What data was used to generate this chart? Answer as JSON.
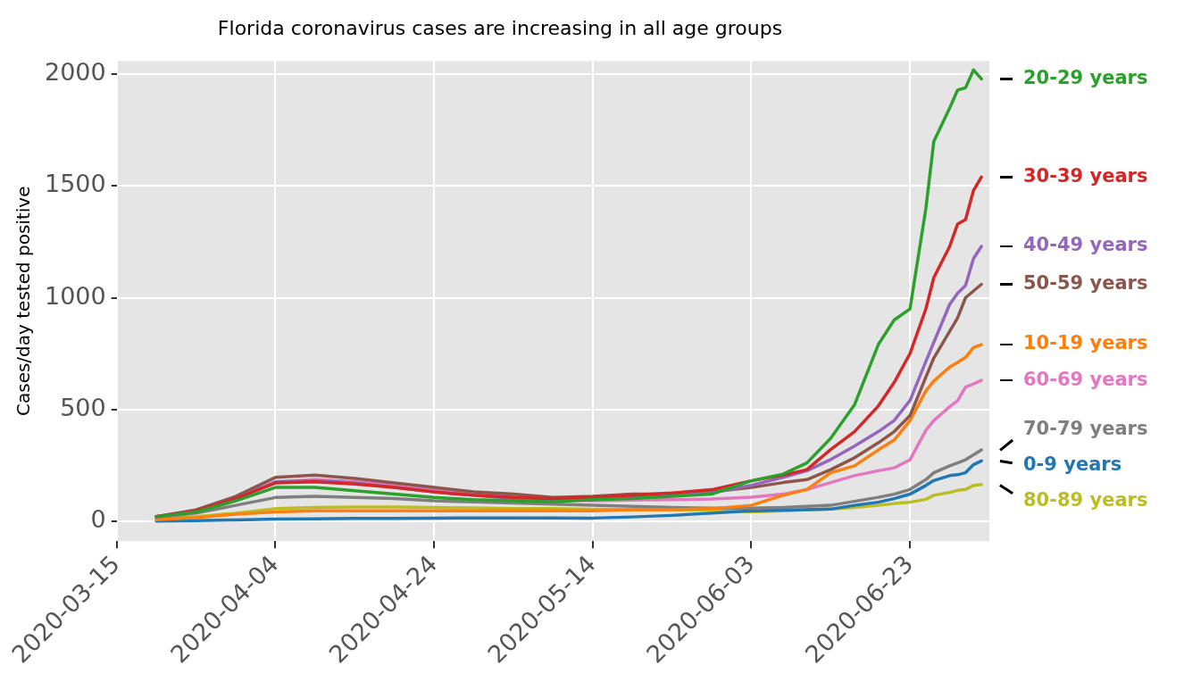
{
  "chart_data": {
    "type": "line",
    "title": "Florida coronavirus cases are increasing in all age groups",
    "ylabel": "Cases/day tested positive",
    "x": [
      "2020-03-20",
      "2020-03-25",
      "2020-03-30",
      "2020-04-04",
      "2020-04-09",
      "2020-04-14",
      "2020-04-19",
      "2020-04-24",
      "2020-04-29",
      "2020-05-04",
      "2020-05-09",
      "2020-05-14",
      "2020-05-19",
      "2020-05-24",
      "2020-05-29",
      "2020-06-03",
      "2020-06-07",
      "2020-06-10",
      "2020-06-13",
      "2020-06-16",
      "2020-06-19",
      "2020-06-21",
      "2020-06-23",
      "2020-06-25",
      "2020-06-26",
      "2020-06-28",
      "2020-06-29",
      "2020-06-30",
      "2020-07-01",
      "2020-07-02"
    ],
    "series": [
      {
        "name": "20-29 years",
        "color": "#2ca02c",
        "values": [
          20,
          40,
          90,
          150,
          150,
          135,
          120,
          105,
          95,
          90,
          85,
          95,
          100,
          110,
          120,
          180,
          210,
          260,
          370,
          520,
          790,
          900,
          950,
          1400,
          1700,
          1850,
          1930,
          1940,
          2020,
          1980
        ]
      },
      {
        "name": "30-39 years",
        "color": "#d62728",
        "values": [
          20,
          45,
          100,
          170,
          175,
          165,
          150,
          130,
          115,
          105,
          100,
          105,
          115,
          125,
          140,
          180,
          205,
          230,
          320,
          400,
          515,
          620,
          750,
          950,
          1090,
          1230,
          1330,
          1350,
          1480,
          1540
        ]
      },
      {
        "name": "40-49 years",
        "color": "#9467bd",
        "values": [
          20,
          45,
          100,
          175,
          180,
          170,
          150,
          130,
          115,
          100,
          95,
          95,
          105,
          115,
          125,
          160,
          195,
          225,
          275,
          335,
          400,
          450,
          540,
          715,
          800,
          970,
          1020,
          1055,
          1175,
          1230
        ]
      },
      {
        "name": "50-59 years",
        "color": "#8c564b",
        "values": [
          20,
          50,
          110,
          195,
          205,
          190,
          170,
          150,
          130,
          120,
          105,
          110,
          120,
          120,
          130,
          150,
          172,
          185,
          230,
          283,
          350,
          400,
          472,
          645,
          730,
          850,
          910,
          1000,
          1030,
          1060
        ]
      },
      {
        "name": "10-19 years",
        "color": "#ff7f0e",
        "values": [
          5,
          15,
          30,
          40,
          45,
          45,
          45,
          45,
          45,
          45,
          45,
          45,
          50,
          50,
          55,
          70,
          115,
          141,
          216,
          247,
          318,
          362,
          450,
          583,
          627,
          689,
          710,
          733,
          777,
          790
        ]
      },
      {
        "name": "60-69 years",
        "color": "#e377c2",
        "values": [
          null,
          null,
          100,
          175,
          185,
          175,
          160,
          140,
          125,
          110,
          95,
          90,
          93,
          95,
          98,
          106,
          120,
          141,
          172,
          203,
          225,
          238,
          274,
          406,
          450,
          512,
          539,
          600,
          614,
          630
        ]
      },
      {
        "name": "70-79 years",
        "color": "#7f7f7f",
        "values": [
          15,
          35,
          70,
          105,
          110,
          105,
          100,
          90,
          85,
          80,
          75,
          70,
          65,
          60,
          57,
          57,
          60,
          65,
          70,
          88,
          106,
          120,
          141,
          185,
          216,
          247,
          260,
          274,
          296,
          318
        ]
      },
      {
        "name": "0-9 years",
        "color": "#1f77b4",
        "values": [
          0,
          2,
          5,
          9,
          10,
          12,
          12,
          13,
          14,
          14,
          14,
          13,
          18,
          25,
          35,
          45,
          48,
          50,
          53,
          70,
          84,
          100,
          120,
          159,
          181,
          203,
          207,
          216,
          252,
          269
        ]
      },
      {
        "name": "80-89 years",
        "color": "#bcbd22",
        "values": [
          10,
          20,
          35,
          55,
          60,
          62,
          62,
          60,
          58,
          55,
          55,
          52,
          50,
          50,
          48,
          40,
          45,
          50,
          53,
          60,
          70,
          78,
          84,
          97,
          115,
          128,
          137,
          141,
          159,
          163
        ]
      }
    ],
    "xlim": [
      "2020-03-15",
      "2020-07-03"
    ],
    "xticks": [
      "2020-03-15",
      "2020-04-04",
      "2020-04-24",
      "2020-05-14",
      "2020-06-03",
      "2020-06-23"
    ],
    "ylim": [
      -90,
      2060
    ],
    "yticks": [
      0,
      500,
      1000,
      1500,
      2000
    ],
    "grid": true
  }
}
